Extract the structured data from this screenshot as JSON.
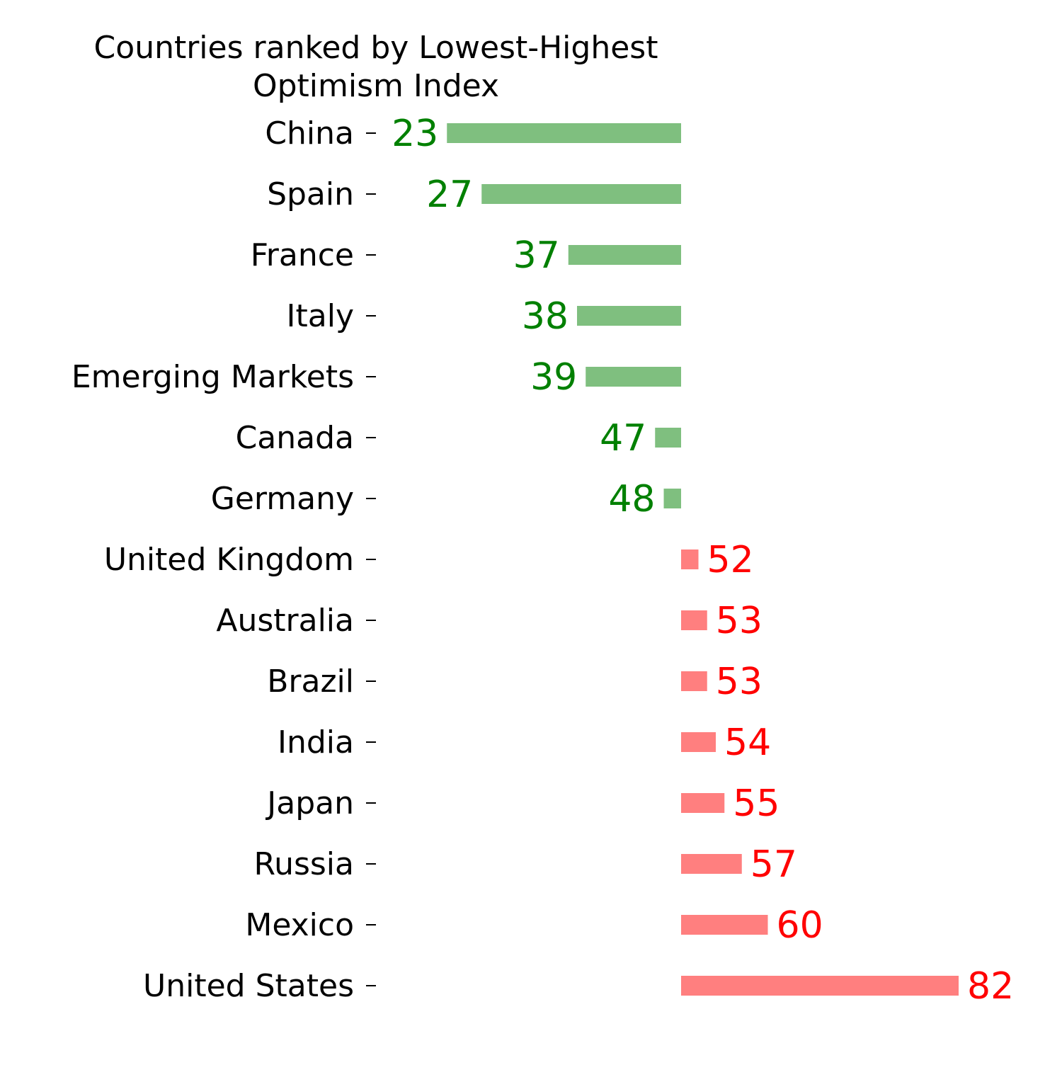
{
  "chart_data": {
    "type": "bar",
    "orientation": "horizontal",
    "title": "Countries ranked by Lowest-Highest\nOptimism Index",
    "baseline": 50,
    "categories": [
      "China",
      "Spain",
      "France",
      "Italy",
      "Emerging Markets",
      "Canada",
      "Germany",
      "United Kingdom",
      "Australia",
      "Brazil",
      "India",
      "Japan",
      "Russia",
      "Mexico",
      "United States"
    ],
    "values": [
      23,
      27,
      37,
      38,
      39,
      47,
      48,
      52,
      53,
      53,
      54,
      55,
      57,
      60,
      82
    ],
    "value_labels": [
      "23",
      "27",
      "37",
      "38",
      "39",
      "47",
      "48",
      "52",
      "53",
      "53",
      "54",
      "55",
      "57",
      "60",
      "82"
    ],
    "colors": {
      "below_baseline_bar": "#7fbf7f",
      "below_baseline_label": "#008000",
      "above_baseline_bar": "#ff7f7f",
      "above_baseline_label": "#ff0000",
      "text": "#000000"
    },
    "grid": false,
    "legend": "none"
  }
}
